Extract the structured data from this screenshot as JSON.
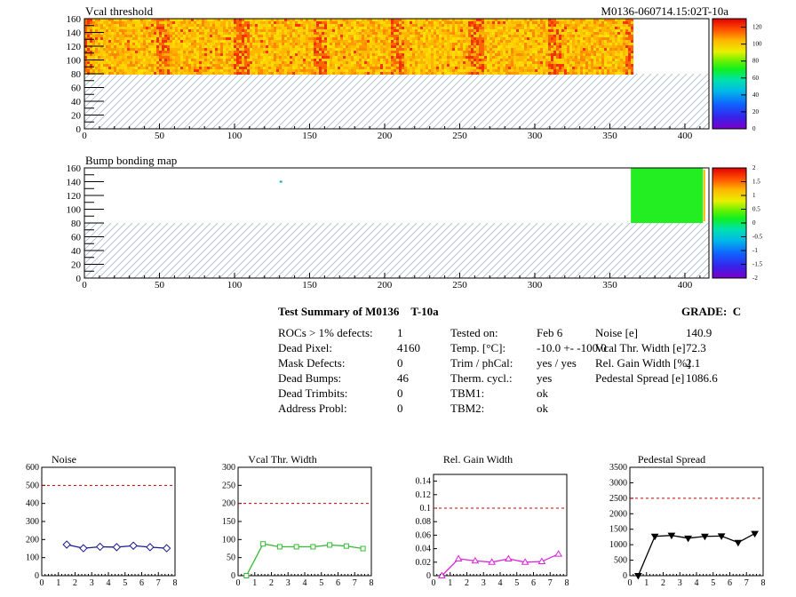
{
  "module_id": "M0136-060714.15:02T-10a",
  "colors": {
    "hatch": "#a9bcc9",
    "red_dashed": "#cc0000",
    "noise": "#1a1a8c",
    "vcal": "#33bb33",
    "gain": "#dd22dd",
    "ped": "#000000",
    "bump_green": "#22ee22"
  },
  "maps": [
    {
      "title": "Vcal threshold",
      "xticks": [
        0,
        50,
        100,
        150,
        200,
        250,
        300,
        350,
        400
      ],
      "yticks": [
        0,
        20,
        40,
        60,
        80,
        100,
        120,
        140,
        160
      ],
      "palette_ticks": [
        0,
        20,
        40,
        60,
        80,
        100,
        120
      ],
      "xlim": [
        0,
        416
      ],
      "ylim": [
        0,
        160
      ],
      "filled_x": [
        0,
        364
      ],
      "filled_y": [
        80,
        160
      ]
    },
    {
      "title": "Bump bonding map",
      "xticks": [
        0,
        50,
        100,
        150,
        200,
        250,
        300,
        350,
        400
      ],
      "yticks": [
        0,
        20,
        40,
        60,
        80,
        100,
        120,
        140,
        160
      ],
      "palette_ticks": [
        -2,
        -1.5,
        -1,
        -0.5,
        0,
        0.5,
        1,
        1.5,
        2
      ],
      "xlim": [
        0,
        416
      ],
      "ylim": [
        0,
        160
      ],
      "green_x": [
        364,
        412
      ],
      "green_y": [
        80,
        160
      ]
    }
  ],
  "summary": {
    "title": "Test Summary of M0136",
    "test": "T-10a",
    "grade_label": "GRADE:",
    "grade": "C",
    "left": [
      {
        "label": "ROCs > 1% defects:",
        "value": "1"
      },
      {
        "label": "Dead Pixel:",
        "value": "4160"
      },
      {
        "label": "Mask Defects:",
        "value": "0"
      },
      {
        "label": "Dead Bumps:",
        "value": "46"
      },
      {
        "label": "Dead Trimbits:",
        "value": "0"
      },
      {
        "label": "Address Probl:",
        "value": "0"
      }
    ],
    "mid": [
      {
        "label": "Tested on:",
        "value": "Feb 6"
      },
      {
        "label": "Temp. [°C]:",
        "value": "-10.0 +- -100.0"
      },
      {
        "label": "Trim / phCal:",
        "value": "yes / yes"
      },
      {
        "label": "Therm. cycl.:",
        "value": "yes"
      },
      {
        "label": "TBM1:",
        "value": "ok"
      },
      {
        "label": "TBM2:",
        "value": "ok"
      }
    ],
    "right": [
      {
        "label": "Noise [e]",
        "value": "140.9"
      },
      {
        "label": "Vcal Thr. Width [e]",
        "value": "72.3"
      },
      {
        "label": "Rel. Gain Width [%]",
        "value": "2.1"
      },
      {
        "label": "Pedestal Spread [e]",
        "value": "1086.6"
      }
    ]
  },
  "chart_data": [
    {
      "type": "line",
      "title": "Noise",
      "x": [
        1.5,
        2.5,
        3.5,
        4.5,
        5.5,
        6.5,
        7.5
      ],
      "values": [
        172,
        152,
        160,
        158,
        166,
        158,
        152
      ],
      "xlim": [
        0,
        8
      ],
      "ylim": [
        0,
        600
      ],
      "threshold": 500,
      "yticks": [
        0,
        100,
        200,
        300,
        400,
        500,
        600
      ],
      "marker": "diamond",
      "error": 10
    },
    {
      "type": "line",
      "title": "Vcal Thr. Width",
      "x": [
        0.5,
        1.5,
        2.5,
        3.5,
        4.5,
        5.5,
        6.5,
        7.5
      ],
      "values": [
        0,
        88,
        80,
        80,
        80,
        85,
        82,
        75
      ],
      "xlim": [
        0,
        8
      ],
      "ylim": [
        0,
        300
      ],
      "threshold": 200,
      "yticks": [
        0,
        50,
        100,
        150,
        200,
        250,
        300
      ],
      "marker": "square"
    },
    {
      "type": "line",
      "title": "Rel. Gain Width",
      "x": [
        0.5,
        1.5,
        2.5,
        3.5,
        4.5,
        5.5,
        6.5,
        7.5
      ],
      "values": [
        0,
        0.025,
        0.022,
        0.02,
        0.025,
        0.02,
        0.021,
        0.032
      ],
      "xlim": [
        0,
        8
      ],
      "ylim": [
        0,
        0.15
      ],
      "threshold": 0.1,
      "yticks": [
        0,
        0.02,
        0.04,
        0.06,
        0.08,
        0.1,
        0.12,
        0.14
      ],
      "marker": "triangle"
    },
    {
      "type": "line",
      "title": "Pedestal Spread",
      "x": [
        0.5,
        1.5,
        2.5,
        3.5,
        4.5,
        5.5,
        6.5,
        7.5
      ],
      "values": [
        0,
        1270,
        1300,
        1210,
        1270,
        1280,
        1070,
        1360
      ],
      "xlim": [
        0,
        8
      ],
      "ylim": [
        0,
        3500
      ],
      "threshold": 2500,
      "yticks": [
        0,
        500,
        1000,
        1500,
        2000,
        2500,
        3000,
        3500
      ],
      "marker": "triangle-down"
    }
  ]
}
